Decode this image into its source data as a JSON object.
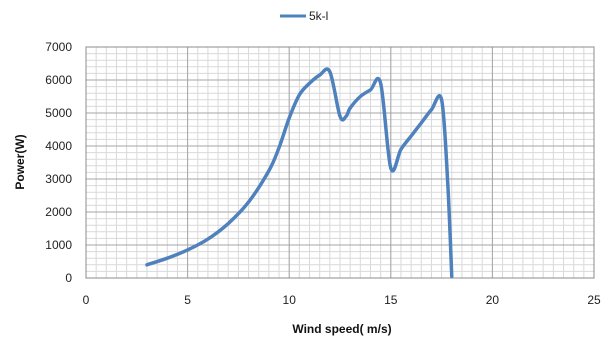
{
  "chart_data": {
    "type": "line",
    "title": "",
    "xlabel": "Wind speed( m/s)",
    "ylabel": "Power(W)",
    "xlim": [
      0,
      25
    ],
    "ylim": [
      0,
      7000
    ],
    "x_ticks": [
      0,
      5,
      10,
      15,
      20,
      25
    ],
    "y_ticks": [
      0,
      1000,
      2000,
      3000,
      4000,
      5000,
      6000,
      7000
    ],
    "x_minor_step": 0.5,
    "y_minor_step": 200,
    "grid": true,
    "legend_position": "top-center",
    "series": [
      {
        "name": "5k-l",
        "color": "#4f81bd",
        "x": [
          3,
          4,
          5,
          6,
          7,
          8,
          9,
          9.5,
          10,
          10.5,
          11,
          11.5,
          12,
          12.5,
          12.8,
          13,
          13.5,
          14,
          14.5,
          15,
          15.5,
          16,
          16.5,
          17,
          17.5,
          17.8,
          18
        ],
        "y": [
          400,
          600,
          850,
          1180,
          1650,
          2300,
          3250,
          3950,
          4850,
          5550,
          5900,
          6150,
          6250,
          4900,
          4900,
          5150,
          5500,
          5700,
          5900,
          3330,
          3900,
          4300,
          4700,
          5100,
          5400,
          2900,
          50
        ]
      }
    ]
  }
}
